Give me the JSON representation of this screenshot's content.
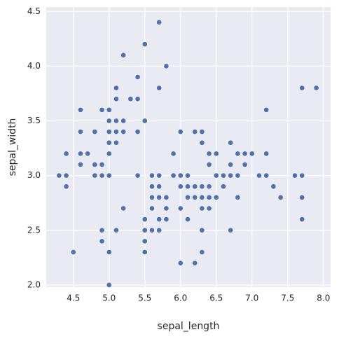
{
  "chart_data": {
    "type": "scatter",
    "x_label": "sepal_length",
    "y_label": "sepal_width",
    "xlim": [
      4.12,
      8.1
    ],
    "ylim": [
      1.98,
      4.54
    ],
    "xticks": [
      4.5,
      {
        "value": 5.0,
        "label": "5.0"
      },
      5.5,
      {
        "value": 6.0,
        "label": "6.0"
      },
      6.5,
      {
        "value": 7.0,
        "label": "7.0"
      },
      7.5,
      {
        "value": 8.0,
        "label": "8.0"
      }
    ],
    "yticks": [
      {
        "value": 2.0,
        "label": "2.0"
      },
      2.5,
      {
        "value": 3.0,
        "label": "3.0"
      },
      3.5,
      {
        "value": 4.0,
        "label": "4.0"
      },
      4.5
    ],
    "grid": true,
    "color": "#4c72b0",
    "x": [
      5.1,
      4.9,
      4.7,
      4.6,
      5.0,
      5.4,
      4.6,
      5.0,
      4.4,
      4.9,
      5.4,
      4.8,
      4.8,
      4.3,
      5.8,
      5.7,
      5.4,
      5.1,
      5.7,
      5.1,
      5.4,
      5.1,
      4.6,
      5.1,
      4.8,
      5.0,
      5.0,
      5.2,
      5.2,
      4.7,
      4.8,
      5.4,
      5.2,
      5.5,
      4.9,
      5.0,
      5.5,
      4.9,
      4.4,
      5.1,
      5.0,
      4.5,
      4.4,
      5.0,
      5.1,
      4.8,
      5.1,
      4.6,
      5.3,
      5.0,
      7.0,
      6.4,
      6.9,
      5.5,
      6.5,
      5.7,
      6.3,
      4.9,
      6.6,
      5.2,
      5.0,
      5.9,
      6.0,
      6.1,
      5.6,
      6.7,
      5.6,
      5.8,
      6.2,
      5.6,
      5.9,
      6.1,
      6.3,
      6.1,
      6.4,
      6.6,
      6.8,
      6.7,
      6.0,
      5.7,
      5.5,
      5.5,
      5.8,
      6.0,
      5.4,
      6.0,
      6.7,
      6.3,
      5.6,
      5.5,
      5.5,
      6.1,
      5.8,
      5.0,
      5.6,
      5.7,
      5.7,
      6.2,
      5.1,
      5.7,
      6.3,
      5.8,
      7.1,
      6.3,
      6.5,
      7.6,
      4.9,
      7.3,
      6.7,
      7.2,
      6.5,
      6.4,
      6.8,
      5.7,
      5.8,
      6.4,
      6.5,
      7.7,
      7.7,
      6.0,
      6.9,
      5.6,
      7.7,
      6.3,
      6.7,
      7.2,
      6.2,
      6.1,
      6.4,
      7.2,
      7.4,
      7.9,
      6.4,
      6.3,
      6.1,
      7.7,
      6.3,
      6.4,
      6.0,
      6.9,
      6.7,
      6.9,
      5.8,
      6.8,
      6.7,
      6.7,
      6.3,
      6.5,
      6.2,
      5.9
    ],
    "values": [
      3.5,
      3.0,
      3.2,
      3.1,
      3.6,
      3.9,
      3.4,
      3.4,
      2.9,
      3.1,
      3.7,
      3.4,
      3.0,
      3.0,
      4.0,
      4.4,
      3.9,
      3.5,
      3.8,
      3.8,
      3.4,
      3.7,
      3.6,
      3.3,
      3.4,
      3.0,
      3.4,
      3.5,
      3.4,
      3.2,
      3.1,
      3.4,
      4.1,
      4.2,
      3.1,
      3.2,
      3.5,
      3.6,
      3.0,
      3.4,
      3.5,
      2.3,
      3.2,
      3.5,
      3.8,
      3.0,
      3.8,
      3.2,
      3.7,
      3.3,
      3.2,
      3.2,
      3.1,
      2.3,
      2.8,
      2.8,
      3.3,
      2.4,
      2.9,
      2.7,
      2.0,
      3.0,
      2.2,
      2.9,
      2.9,
      3.1,
      3.0,
      2.7,
      2.2,
      2.5,
      3.2,
      2.8,
      2.5,
      2.8,
      2.9,
      3.0,
      2.8,
      3.0,
      2.9,
      2.6,
      2.4,
      2.4,
      2.7,
      2.7,
      3.0,
      3.4,
      3.1,
      2.3,
      3.0,
      2.5,
      2.6,
      3.0,
      2.6,
      2.3,
      2.7,
      3.0,
      2.9,
      2.9,
      2.5,
      2.8,
      3.3,
      2.7,
      3.0,
      2.9,
      3.0,
      3.0,
      2.5,
      2.9,
      2.5,
      3.6,
      3.2,
      2.7,
      3.0,
      2.5,
      2.8,
      3.2,
      3.0,
      3.8,
      2.6,
      2.2,
      3.2,
      2.8,
      2.8,
      2.7,
      3.3,
      3.2,
      2.8,
      3.0,
      2.8,
      3.0,
      2.8,
      3.8,
      2.8,
      2.8,
      2.6,
      3.0,
      3.4,
      3.1,
      3.0,
      3.1,
      3.1,
      3.1,
      2.7,
      3.2,
      3.3,
      3.0,
      2.5,
      3.0,
      3.4,
      3.0
    ]
  }
}
